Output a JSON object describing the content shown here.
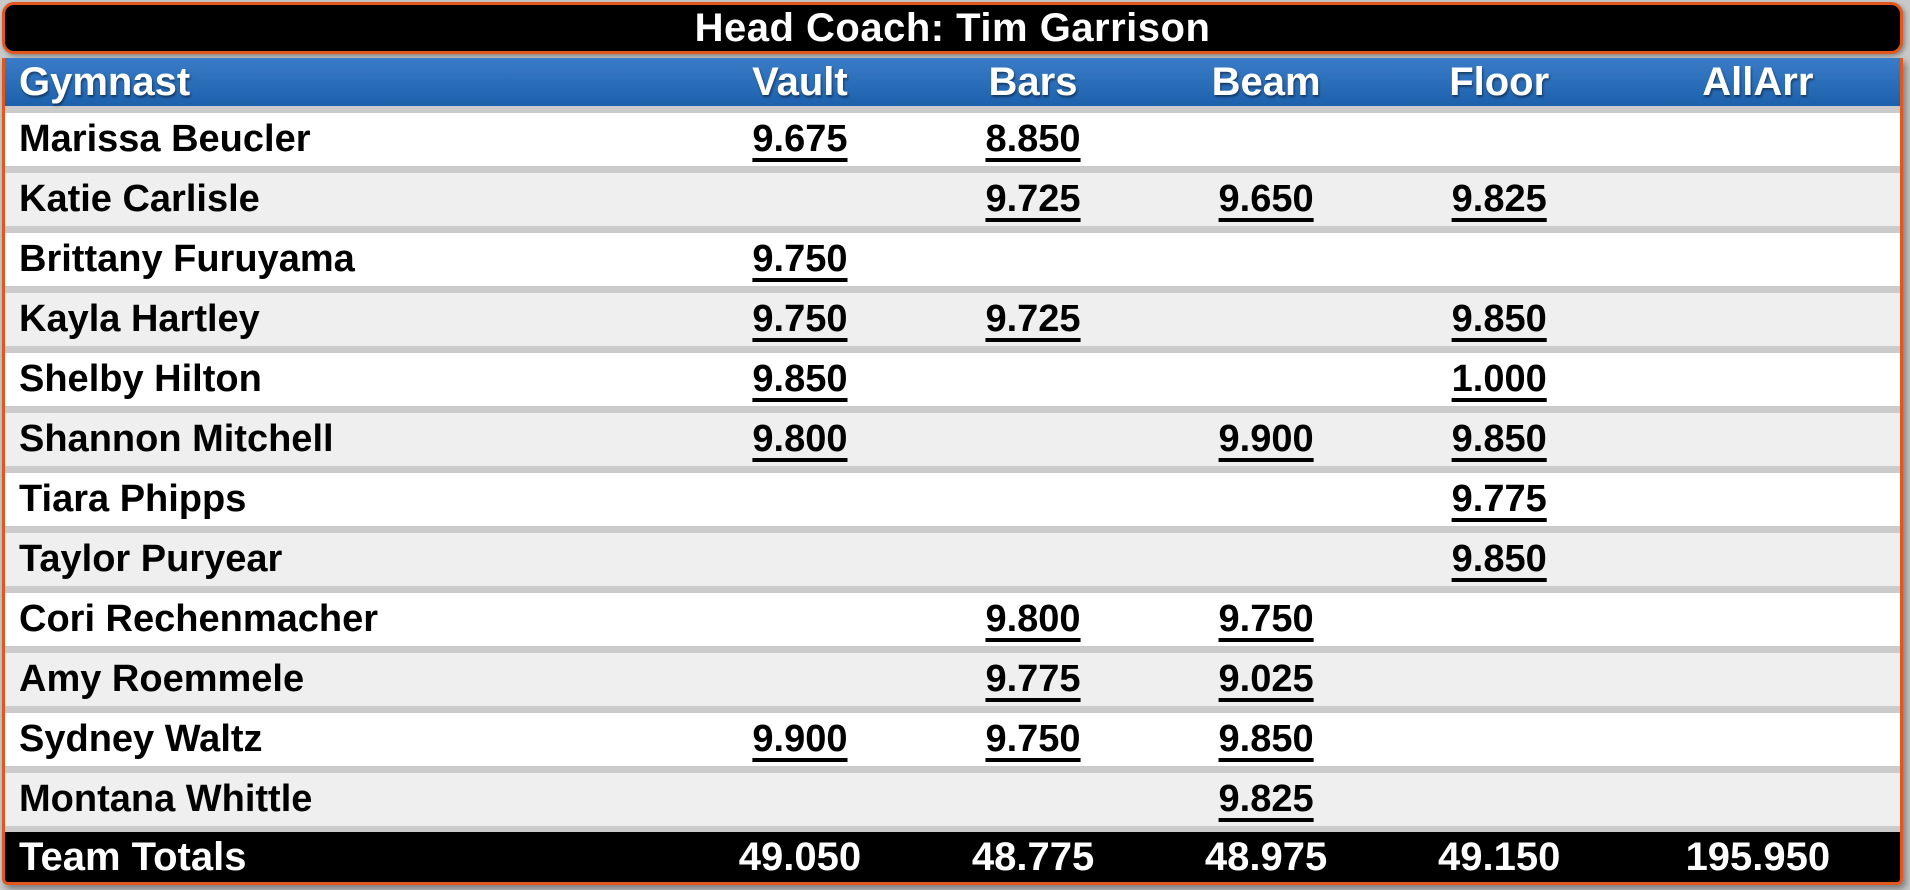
{
  "title_bar": {
    "text": "Head Coach: Tim Garrison"
  },
  "table": {
    "columns": [
      "Gymnast",
      "Vault",
      "Bars",
      "Beam",
      "Floor",
      "AllArr"
    ],
    "rows": [
      {
        "gymnast": "Marissa Beucler",
        "scores": [
          "9.675",
          "8.850",
          "",
          "",
          ""
        ]
      },
      {
        "gymnast": "Katie Carlisle",
        "scores": [
          "",
          "9.725",
          "9.650",
          "9.825",
          ""
        ]
      },
      {
        "gymnast": "Brittany Furuyama",
        "scores": [
          "9.750",
          "",
          "",
          "",
          ""
        ]
      },
      {
        "gymnast": "Kayla Hartley",
        "scores": [
          "9.750",
          "9.725",
          "",
          "9.850",
          ""
        ]
      },
      {
        "gymnast": "Shelby Hilton",
        "scores": [
          "9.850",
          "",
          "",
          "1.000",
          ""
        ]
      },
      {
        "gymnast": "Shannon Mitchell",
        "scores": [
          "9.800",
          "",
          "9.900",
          "9.850",
          ""
        ]
      },
      {
        "gymnast": "Tiara Phipps",
        "scores": [
          "",
          "",
          "",
          "9.775",
          ""
        ]
      },
      {
        "gymnast": "Taylor Puryear",
        "scores": [
          "",
          "",
          "",
          "9.850",
          ""
        ]
      },
      {
        "gymnast": "Cori Rechenmacher",
        "scores": [
          "",
          "9.800",
          "9.750",
          "",
          ""
        ]
      },
      {
        "gymnast": "Amy Roemmele",
        "scores": [
          "",
          "9.775",
          "9.025",
          "",
          ""
        ]
      },
      {
        "gymnast": "Sydney Waltz",
        "scores": [
          "9.900",
          "9.750",
          "9.850",
          "",
          ""
        ]
      },
      {
        "gymnast": "Montana Whittle",
        "scores": [
          "",
          "",
          "9.825",
          "",
          ""
        ]
      }
    ],
    "totals": {
      "label": "Team Totals",
      "values": [
        "49.050",
        "48.775",
        "48.975",
        "49.150",
        "195.950"
      ]
    }
  },
  "colors": {
    "accent_orange": "#e2571e",
    "title_bg": "#000000",
    "totals_bg": "#000000",
    "header_blue_top": "#3a7cc7",
    "header_blue_bottom": "#1a5ea9",
    "row_alt": "#efefef",
    "divider": "#cbcbcb",
    "page_bg": "#c9c9c9"
  }
}
